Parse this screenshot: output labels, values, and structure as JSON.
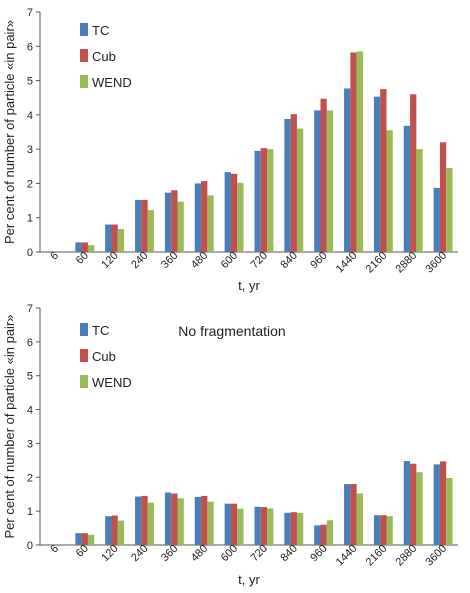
{
  "chart_data": [
    {
      "type": "bar",
      "title": "",
      "xlabel": "t, yr",
      "ylabel": "Per cent of number of particle «in pair»",
      "ylim": [
        0,
        7
      ],
      "yticks": [
        "0",
        "1",
        "2",
        "3",
        "4",
        "5",
        "6",
        "7"
      ],
      "categories": [
        "6",
        "60",
        "120",
        "240",
        "360",
        "480",
        "600",
        "720",
        "840",
        "960",
        "1440",
        "2160",
        "2880",
        "3600"
      ],
      "legend_position": "top-left",
      "grid": false,
      "series": [
        {
          "name": "TC",
          "color": "#4a7ebb",
          "values": [
            0,
            0.28,
            0.8,
            1.52,
            1.73,
            2.0,
            2.33,
            2.95,
            3.88,
            4.13,
            4.77,
            4.53,
            3.68,
            1.87
          ]
        },
        {
          "name": "Cub",
          "color": "#c0504d",
          "values": [
            0,
            0.28,
            0.8,
            1.52,
            1.8,
            2.07,
            2.28,
            3.03,
            4.02,
            4.47,
            5.82,
            4.75,
            4.6,
            3.2
          ]
        },
        {
          "name": "WEND",
          "color": "#9bbb59",
          "values": [
            0,
            0.2,
            0.67,
            1.22,
            1.47,
            1.65,
            2.02,
            3.0,
            3.6,
            4.13,
            5.85,
            3.55,
            3.0,
            2.45
          ]
        }
      ]
    },
    {
      "type": "bar",
      "title": "",
      "annotation": "No fragmentation",
      "xlabel": "t, yr",
      "ylabel": "Per cent of number of particle «in pair»",
      "ylim": [
        0,
        7
      ],
      "yticks": [
        "0",
        "1",
        "2",
        "3",
        "4",
        "5",
        "6",
        "7"
      ],
      "categories": [
        "6",
        "60",
        "120",
        "240",
        "360",
        "480",
        "600",
        "720",
        "840",
        "960",
        "1440",
        "2160",
        "2880",
        "3600"
      ],
      "legend_position": "top-left",
      "grid": false,
      "series": [
        {
          "name": "TC",
          "color": "#4a7ebb",
          "values": [
            0,
            0.35,
            0.85,
            1.43,
            1.55,
            1.42,
            1.22,
            1.13,
            0.95,
            0.58,
            1.8,
            0.88,
            2.48,
            2.38
          ]
        },
        {
          "name": "Cub",
          "color": "#c0504d",
          "values": [
            0,
            0.35,
            0.87,
            1.45,
            1.52,
            1.45,
            1.22,
            1.12,
            0.97,
            0.6,
            1.8,
            0.88,
            2.4,
            2.47
          ]
        },
        {
          "name": "WEND",
          "color": "#9bbb59",
          "values": [
            0,
            0.3,
            0.72,
            1.25,
            1.38,
            1.28,
            1.07,
            1.08,
            0.95,
            0.73,
            1.52,
            0.85,
            2.15,
            1.98
          ]
        }
      ]
    }
  ]
}
